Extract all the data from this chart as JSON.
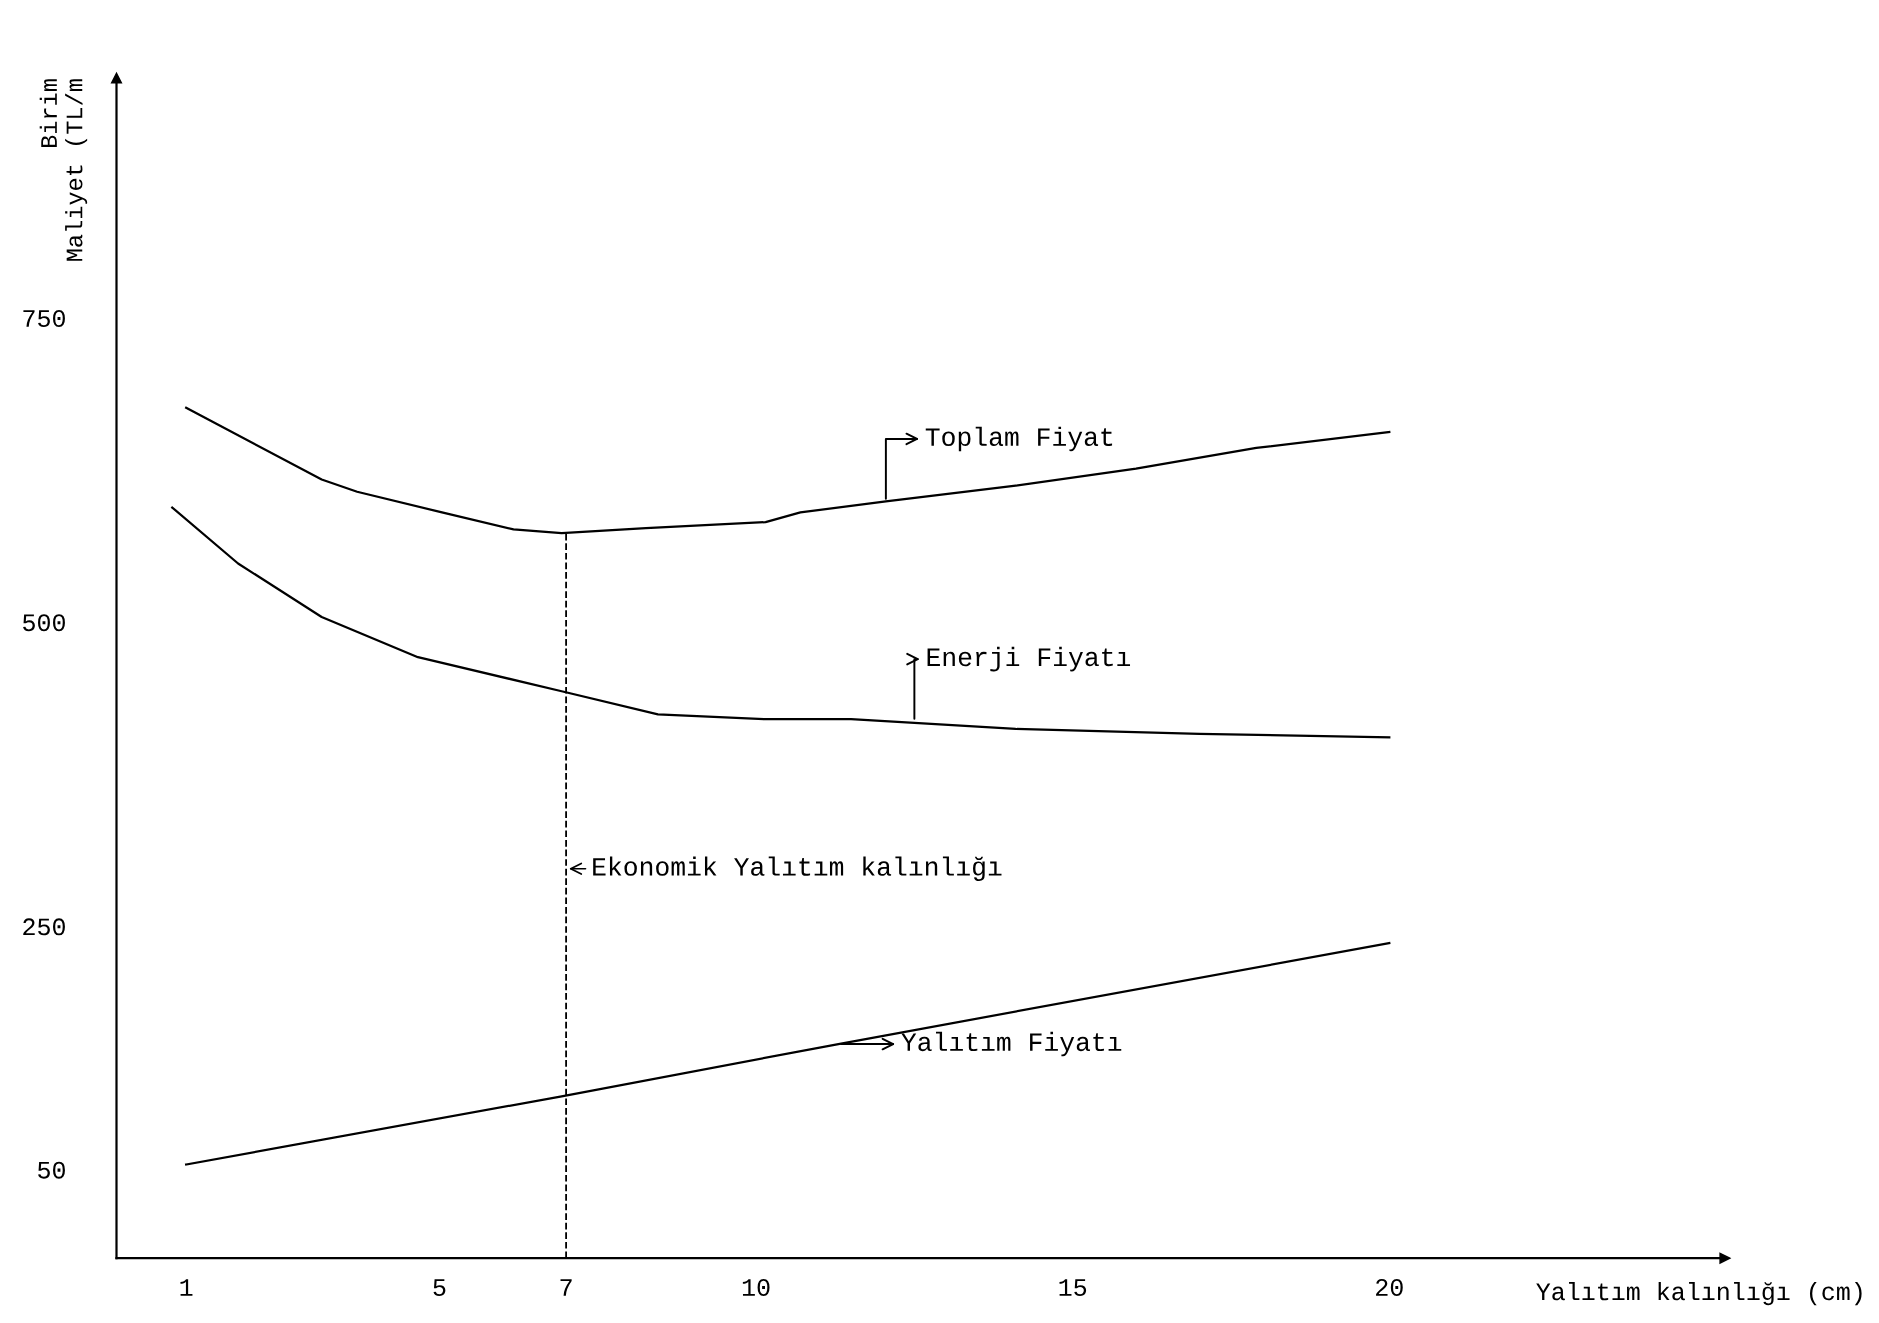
{
  "chart_data": {
    "type": "line",
    "xlabel": "Yalıtım kalınlığı (cm)",
    "ylabel": "Birim\nMaliyet (TL/m",
    "xlim": [
      -0.1,
      25.3
    ],
    "ylim": [
      -23,
      947
    ],
    "xticks": [
      1,
      5,
      7,
      10,
      15,
      20
    ],
    "yticks": [
      50,
      250,
      500,
      750
    ],
    "grid": false,
    "marker": "none",
    "series": [
      {
        "color": "#000000",
        "x": [
          1,
          3.14,
          3.7,
          5.04,
          6.17,
          6.93,
          8.26,
          10.15,
          10.7,
          12.05,
          14.1,
          16.0,
          17.9,
          20
        ],
        "values": [
          676,
          617,
          607,
          590,
          576,
          573,
          577,
          582,
          590,
          599,
          612,
          626,
          643,
          656
        ]
      },
      {
        "color": "#000000",
        "x": [
          0.78,
          1.82,
          3.14,
          4.66,
          6.93,
          8.45,
          10.15,
          11.5,
          14.1,
          17,
          20
        ],
        "values": [
          594,
          548,
          504,
          471,
          443,
          424,
          420,
          420,
          412,
          408,
          405
        ]
      },
      {
        "color": "#000000",
        "x": [
          1,
          6.93,
          11.3,
          20
        ],
        "values": [
          54,
          110,
          153,
          236
        ]
      }
    ],
    "annotations": [
      {
        "text": "Toplam Fiyat",
        "x": 12.05,
        "y": 599
      },
      {
        "text": "Enerji Fiyatı",
        "x": 12.5,
        "y": 418
      },
      {
        "text": "Yalıtım Fiyatı",
        "x": 11.3,
        "y": 153
      }
    ],
    "ref_lines": [
      {
        "axis": "x",
        "value": 7,
        "label": "Ekonomik Yalıtım kalınlığı",
        "line_style": "dashed",
        "color": "#000000"
      }
    ]
  }
}
